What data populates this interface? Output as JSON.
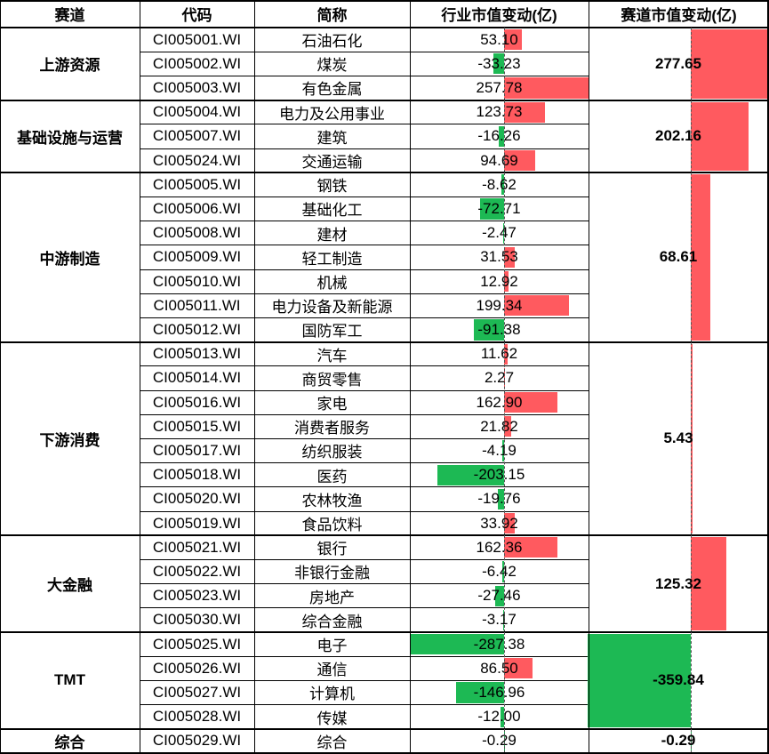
{
  "headers": {
    "sector": "赛道",
    "code": "代码",
    "name": "简称",
    "industry_change": "行业市值变动(亿)",
    "sector_change": "赛道市值变动(亿)"
  },
  "colors": {
    "positive": "#ff5a5f",
    "negative": "#1db954"
  },
  "sectors": [
    {
      "name": "上游资源",
      "value": "277.65",
      "num": 277.65,
      "rows": [
        {
          "code": "CI005001.WI",
          "name": "石油石化",
          "value": "53.10",
          "num": 53.1
        },
        {
          "code": "CI005002.WI",
          "name": "煤炭",
          "value": "-33.23",
          "num": -33.23
        },
        {
          "code": "CI005003.WI",
          "name": "有色金属",
          "value": "257.78",
          "num": 257.78
        }
      ]
    },
    {
      "name": "基础设施与运营",
      "value": "202.16",
      "num": 202.16,
      "rows": [
        {
          "code": "CI005004.WI",
          "name": "电力及公用事业",
          "value": "123.73",
          "num": 123.73
        },
        {
          "code": "CI005007.WI",
          "name": "建筑",
          "value": "-16.26",
          "num": -16.26
        },
        {
          "code": "CI005024.WI",
          "name": "交通运输",
          "value": "94.69",
          "num": 94.69
        }
      ]
    },
    {
      "name": "中游制造",
      "value": "68.61",
      "num": 68.61,
      "rows": [
        {
          "code": "CI005005.WI",
          "name": "钢铁",
          "value": "-8.62",
          "num": -8.62
        },
        {
          "code": "CI005006.WI",
          "name": "基础化工",
          "value": "-72.71",
          "num": -72.71
        },
        {
          "code": "CI005008.WI",
          "name": "建材",
          "value": "-2.47",
          "num": -2.47
        },
        {
          "code": "CI005009.WI",
          "name": "轻工制造",
          "value": "31.53",
          "num": 31.53
        },
        {
          "code": "CI005010.WI",
          "name": "机械",
          "value": "12.92",
          "num": 12.92
        },
        {
          "code": "CI005011.WI",
          "name": "电力设备及新能源",
          "value": "199.34",
          "num": 199.34
        },
        {
          "code": "CI005012.WI",
          "name": "国防军工",
          "value": "-91.38",
          "num": -91.38
        }
      ]
    },
    {
      "name": "下游消费",
      "value": "5.43",
      "num": 5.43,
      "rows": [
        {
          "code": "CI005013.WI",
          "name": "汽车",
          "value": "11.62",
          "num": 11.62
        },
        {
          "code": "CI005014.WI",
          "name": "商贸零售",
          "value": "2.27",
          "num": 2.27
        },
        {
          "code": "CI005016.WI",
          "name": "家电",
          "value": "162.90",
          "num": 162.9
        },
        {
          "code": "CI005015.WI",
          "name": "消费者服务",
          "value": "21.82",
          "num": 21.82
        },
        {
          "code": "CI005017.WI",
          "name": "纺织服装",
          "value": "-4.19",
          "num": -4.19
        },
        {
          "code": "CI005018.WI",
          "name": "医药",
          "value": "-203.15",
          "num": -203.15
        },
        {
          "code": "CI005020.WI",
          "name": "农林牧渔",
          "value": "-19.76",
          "num": -19.76
        },
        {
          "code": "CI005019.WI",
          "name": "食品饮料",
          "value": "33.92",
          "num": 33.92
        }
      ]
    },
    {
      "name": "大金融",
      "value": "125.32",
      "num": 125.32,
      "rows": [
        {
          "code": "CI005021.WI",
          "name": "银行",
          "value": "162.36",
          "num": 162.36
        },
        {
          "code": "CI005022.WI",
          "name": "非银行金融",
          "value": "-6.42",
          "num": -6.42
        },
        {
          "code": "CI005023.WI",
          "name": "房地产",
          "value": "-27.46",
          "num": -27.46
        },
        {
          "code": "CI005030.WI",
          "name": "综合金融",
          "value": "-3.17",
          "num": -3.17
        }
      ]
    },
    {
      "name": "TMT",
      "value": "-359.84",
      "num": -359.84,
      "rows": [
        {
          "code": "CI005025.WI",
          "name": "电子",
          "value": "-287.38",
          "num": -287.38
        },
        {
          "code": "CI005026.WI",
          "name": "通信",
          "value": "86.50",
          "num": 86.5
        },
        {
          "code": "CI005027.WI",
          "name": "计算机",
          "value": "-146.96",
          "num": -146.96
        },
        {
          "code": "CI005028.WI",
          "name": "传媒",
          "value": "-12.00",
          "num": -12.0
        }
      ]
    },
    {
      "name": "综合",
      "value": "-0.29",
      "num": -0.29,
      "rows": [
        {
          "code": "CI005029.WI",
          "name": "综合",
          "value": "-0.29",
          "num": -0.29
        }
      ]
    }
  ]
}
